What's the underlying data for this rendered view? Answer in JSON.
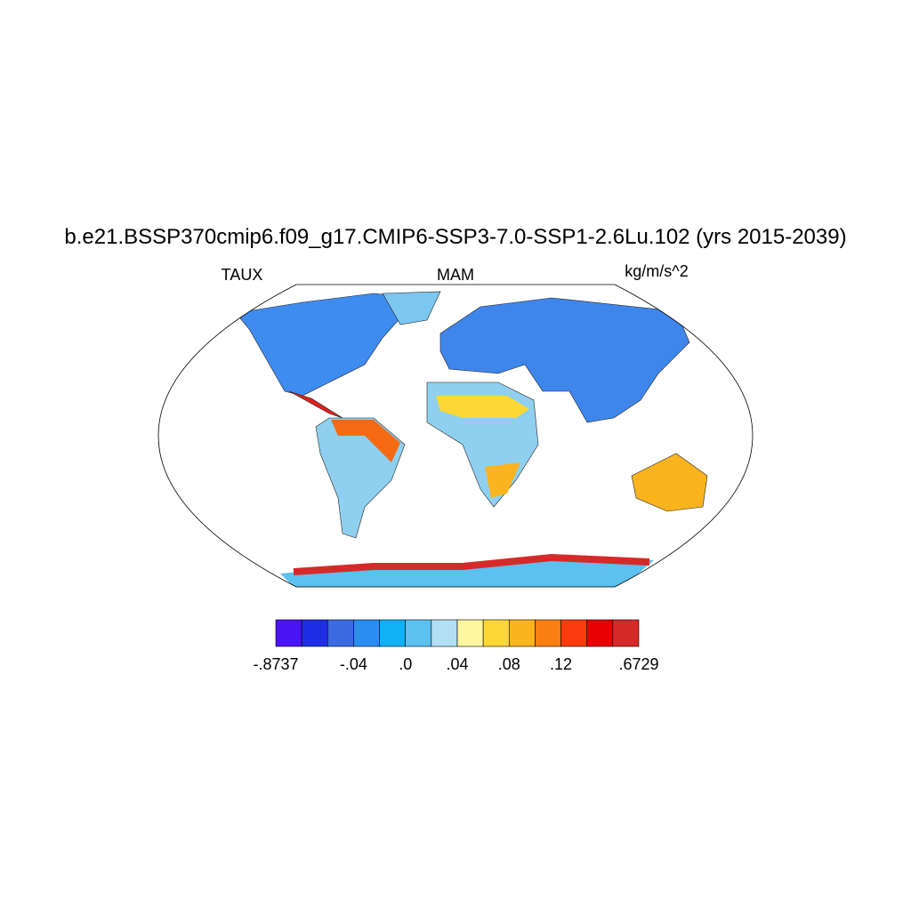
{
  "title": "b.e21.BSSP370cmip6.f09_g17.CMIP6-SSP3-7.0-SSP1-2.6Lu.102 (yrs 2015-2039)",
  "left_label": "TAUX",
  "center_label": "MAM",
  "right_label": "kg/m/s^2",
  "colorbar": {
    "colors": [
      "#4a14f5",
      "#1f2ee6",
      "#3b6be0",
      "#2b8cf2",
      "#11b0f7",
      "#5cc0f0",
      "#b3dff5",
      "#fff6a0",
      "#fdd835",
      "#fbb41d",
      "#fa7f12",
      "#fb3b0d",
      "#e60000",
      "#d62a2a"
    ],
    "levels": [
      {
        "value": -0.8737,
        "label": "-.8737"
      },
      null,
      null,
      {
        "value": -0.04,
        "label": "-.04"
      },
      null,
      {
        "value": 0,
        "label": ".0"
      },
      null,
      {
        "value": 0.04,
        "label": ".04"
      },
      null,
      {
        "value": 0.08,
        "label": ".08"
      },
      null,
      {
        "value": 0.12,
        "label": ".12"
      },
      null,
      null,
      {
        "value": 0.6729,
        "label": ".6729"
      }
    ]
  }
}
